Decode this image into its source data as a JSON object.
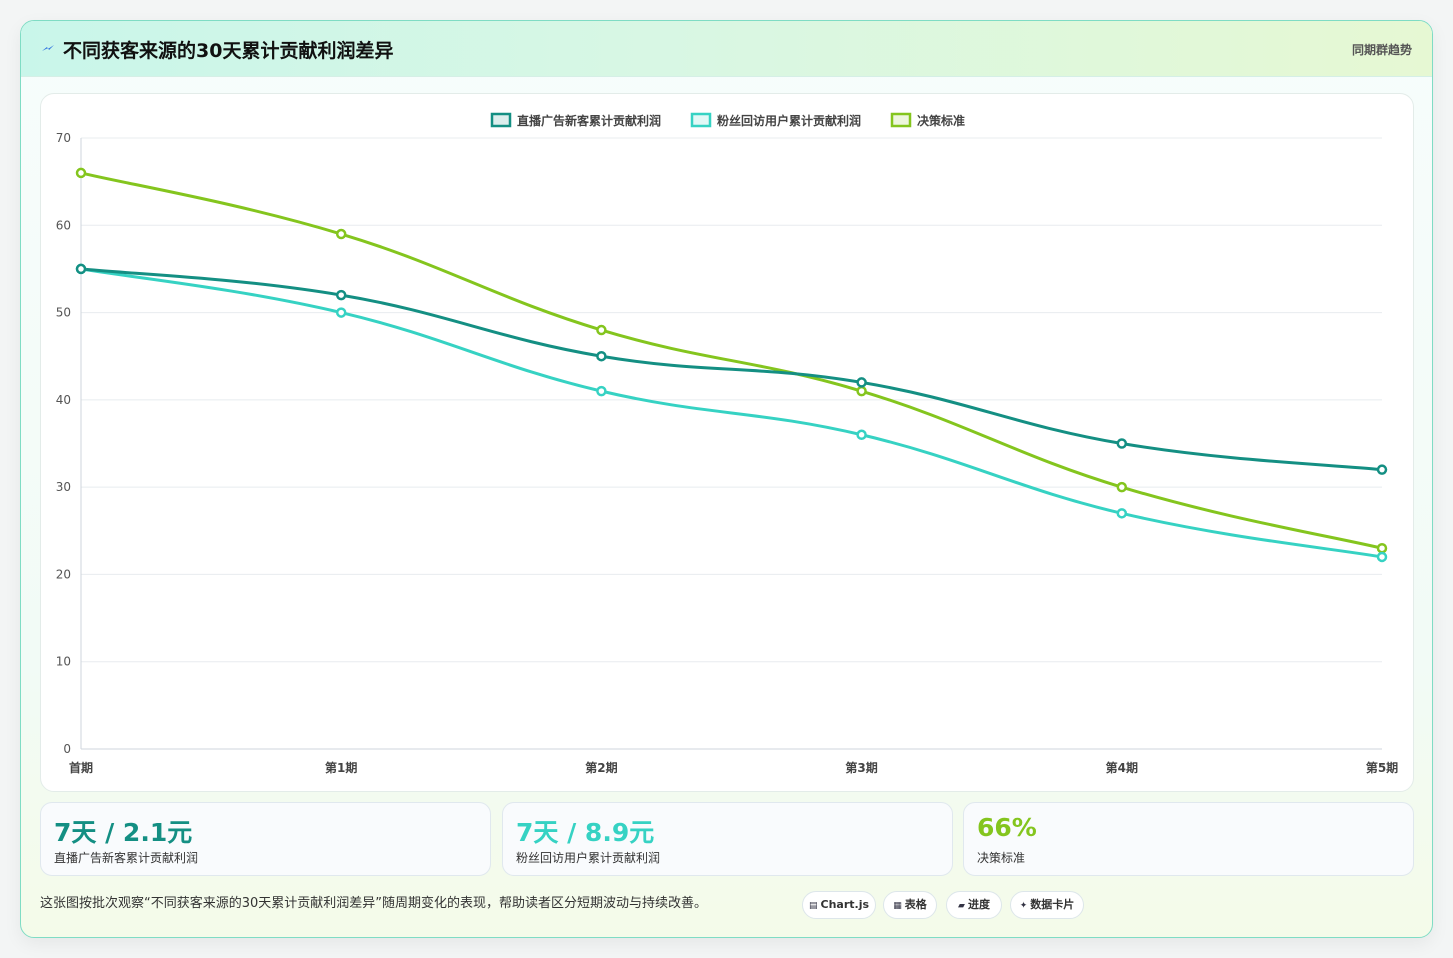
{
  "header": {
    "title": "不同获客来源的30天累计贡献利润差异",
    "tag": "同期群趋势"
  },
  "colors": {
    "series1": "#148f83",
    "series2": "#36d2c3",
    "series3": "#84c51e"
  },
  "chart_data": {
    "type": "line",
    "categories": [
      "首期",
      "第1期",
      "第2期",
      "第3期",
      "第4期",
      "第5期"
    ],
    "series": [
      {
        "name": "直播广告新客累计贡献利润",
        "values": [
          55,
          52,
          45,
          42,
          35,
          32
        ]
      },
      {
        "name": "粉丝回访用户累计贡献利润",
        "values": [
          55,
          50,
          41,
          36,
          27,
          22
        ]
      },
      {
        "name": "决策标准",
        "values": [
          66,
          59,
          48,
          41,
          30,
          23
        ]
      }
    ],
    "ylim": [
      0,
      70
    ],
    "yticks": [
      0,
      10,
      20,
      30,
      40,
      50,
      60,
      70
    ],
    "grid": true,
    "legend": "top-center"
  },
  "stats": [
    {
      "value": "7天 / 2.1元",
      "label": "直播广告新客累计贡献利润",
      "color": "#148f83"
    },
    {
      "value": "7天 / 8.9元",
      "label": "粉丝回访用户累计贡献利润",
      "color": "#36d2c3"
    },
    {
      "value": "66%",
      "label": "决策标准",
      "color": "#84c51e"
    }
  ],
  "footer": {
    "description": "这张图按批次观察“不同获客来源的30天累计贡献利润差异”随周期变化的表现，帮助读者区分短期波动与持续改善。",
    "pills": [
      {
        "icon": "▤",
        "label": "Chart.js"
      },
      {
        "icon": "▦",
        "label": "表格"
      },
      {
        "icon": "▰",
        "label": "进度"
      },
      {
        "icon": "✦",
        "label": "数据卡片"
      }
    ]
  }
}
